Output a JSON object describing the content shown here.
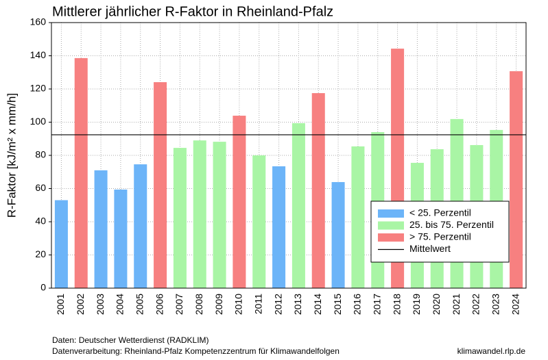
{
  "chart_data": {
    "type": "bar",
    "title": "Mittlerer jährlicher R-Faktor in Rheinland-Pfalz",
    "y_label": "R-Faktor [kJ/m² x mm/h]",
    "categories": [
      "2001",
      "2002",
      "2003",
      "2004",
      "2005",
      "2006",
      "2007",
      "2008",
      "2009",
      "2010",
      "2011",
      "2012",
      "2013",
      "2014",
      "2015",
      "2016",
      "2017",
      "2018",
      "2019",
      "2020",
      "2021",
      "2022",
      "2023",
      "2024"
    ],
    "series": [
      {
        "name": "< 25. Perzentil",
        "color": "#6cb4f8",
        "values": [
          53,
          null,
          71,
          59.4,
          74.6,
          null,
          null,
          null,
          null,
          null,
          null,
          73.4,
          null,
          null,
          63.9,
          null,
          null,
          null,
          null,
          null,
          null,
          null,
          null,
          null
        ]
      },
      {
        "name": "25. bis 75. Perzentil",
        "color": "#a9f5a5",
        "values": [
          null,
          null,
          null,
          null,
          null,
          null,
          84.5,
          89,
          88.2,
          null,
          80,
          null,
          99.4,
          null,
          null,
          85.4,
          94,
          null,
          75.5,
          83.7,
          101.9,
          86.2,
          95.3,
          null
        ]
      },
      {
        "name": "> 75. Perzentil",
        "color": "#f78080",
        "values": [
          null,
          138.6,
          null,
          null,
          null,
          124.1,
          null,
          null,
          null,
          103.9,
          null,
          null,
          null,
          117.5,
          null,
          null,
          null,
          144.3,
          null,
          null,
          null,
          null,
          null,
          130.7
        ]
      }
    ],
    "mean": {
      "name": "Mittelwert",
      "value": 92.4,
      "color": "#000000"
    },
    "ylim": [
      0,
      160
    ],
    "yticks": [
      0,
      20,
      40,
      60,
      80,
      100,
      120,
      140,
      160
    ],
    "grid": true,
    "legend": "lower-right"
  },
  "footer": {
    "source": "Daten: Deutscher Wetterdienst (RADKLIM)",
    "processing": "Datenverarbeitung: Rheinland-Pfalz Kompetenzzentrum für Klimawandelfolgen",
    "website": "klimawandel.rlp.de"
  }
}
